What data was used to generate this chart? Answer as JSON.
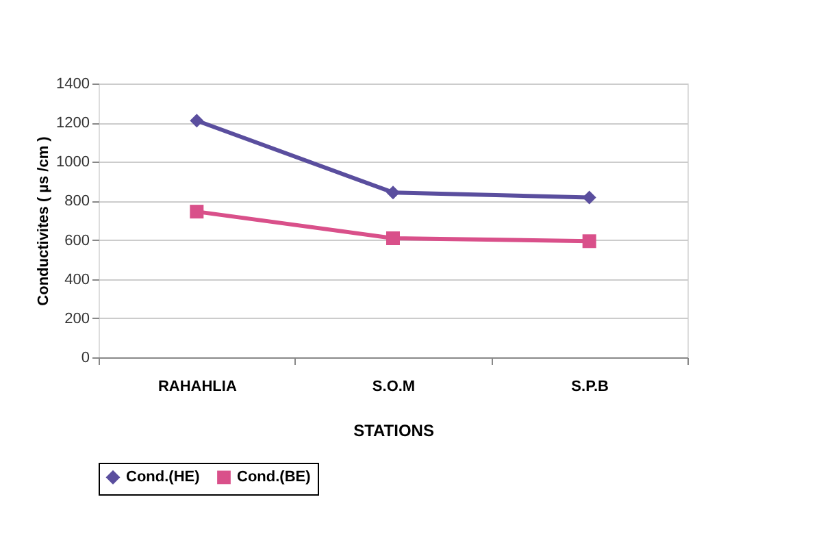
{
  "chart_data": {
    "type": "line",
    "xlabel": "STATIONS",
    "ylabel": "Conductivites ( µs /cm )",
    "categories": [
      "RAHAHLIA",
      "S.O.M",
      "S.P.B"
    ],
    "series": [
      {
        "name": "Cond.(HE)",
        "color": "#5a4e9e",
        "values": [
          1210,
          843,
          817
        ],
        "marker": "diamond"
      },
      {
        "name": "Cond.(BE)",
        "color": "#d9508a",
        "values": [
          745,
          609,
          594
        ],
        "marker": "square"
      }
    ],
    "ylim": [
      0,
      1400
    ],
    "yticks": [
      0,
      200,
      400,
      600,
      800,
      1000,
      1200,
      1400
    ],
    "grid": "y",
    "legend": "bottom",
    "line_style": "solid"
  }
}
